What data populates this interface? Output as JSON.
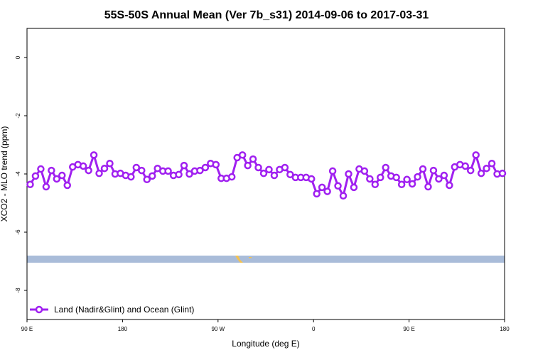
{
  "chart_data": {
    "type": "line",
    "title": "55S-50S Annual Mean (Ver 7b_s31)   2014-09-06 to 2017-03-31",
    "x_label": "Longitude (deg E)",
    "y_label": "XCO2 - MLO trend (ppm)",
    "xlim": [
      90,
      540
    ],
    "ylim": [
      -9,
      1
    ],
    "xticks": [
      {
        "value": 90,
        "label": "90 E"
      },
      {
        "value": 180,
        "label": "180"
      },
      {
        "value": 270,
        "label": "90 W"
      },
      {
        "value": 360,
        "label": "0"
      },
      {
        "value": 450,
        "label": "90 E"
      },
      {
        "value": 540,
        "label": "180"
      }
    ],
    "yticks": [
      -8,
      -6,
      -4,
      -2,
      0
    ],
    "legend": "bottom-left",
    "x": [
      93,
      98,
      103,
      108,
      113,
      118,
      123,
      128,
      133,
      138,
      143,
      148,
      153,
      158,
      163,
      168,
      173,
      178,
      183,
      188,
      193,
      198,
      203,
      208,
      213,
      218,
      223,
      228,
      233,
      238,
      243,
      248,
      253,
      258,
      263,
      268,
      273,
      278,
      283,
      288,
      293,
      298,
      303,
      308,
      313,
      318,
      323,
      328,
      333,
      338,
      343,
      348,
      353,
      358,
      363,
      368,
      373,
      378,
      383,
      388,
      393,
      398,
      403,
      408,
      413,
      418,
      423,
      428,
      433,
      438,
      443,
      448,
      453,
      458,
      463,
      468,
      473,
      478,
      483,
      488,
      493,
      498,
      503,
      508,
      513,
      518,
      523,
      528,
      533,
      538
    ],
    "series": [
      {
        "name": "Land (Nadir&Glint) and Ocean (Glint)",
        "color": "#a020f0",
        "values": [
          -4.36,
          -4.07,
          -3.83,
          -4.44,
          -3.88,
          -4.17,
          -4.05,
          -4.39,
          -3.76,
          -3.68,
          -3.73,
          -3.88,
          -3.35,
          -3.98,
          -3.81,
          -3.64,
          -4.0,
          -3.98,
          -4.05,
          -4.1,
          -3.78,
          -3.88,
          -4.19,
          -4.07,
          -3.81,
          -3.9,
          -3.9,
          -4.05,
          -4.02,
          -3.71,
          -4.0,
          -3.9,
          -3.88,
          -3.78,
          -3.64,
          -3.68,
          -4.15,
          -4.15,
          -4.1,
          -3.44,
          -3.35,
          -3.71,
          -3.49,
          -3.78,
          -3.98,
          -3.85,
          -4.05,
          -3.85,
          -3.78,
          -4.02,
          -4.12,
          -4.12,
          -4.12,
          -4.17,
          -4.68,
          -4.46,
          -4.6,
          -3.9,
          -4.41,
          -4.75,
          -4.0,
          -4.46,
          -3.83,
          -3.9,
          -4.17,
          -4.36,
          -4.12,
          -3.78,
          -4.07,
          -4.12,
          -4.36,
          -4.19,
          -4.34,
          -4.1,
          -3.83,
          -4.44,
          -3.88,
          -4.17,
          -4.05,
          -4.39,
          -3.76,
          -3.68,
          -3.73,
          -3.88,
          -3.35,
          -3.98,
          -3.81,
          -3.64,
          -4.0,
          -3.98
        ]
      }
    ]
  }
}
